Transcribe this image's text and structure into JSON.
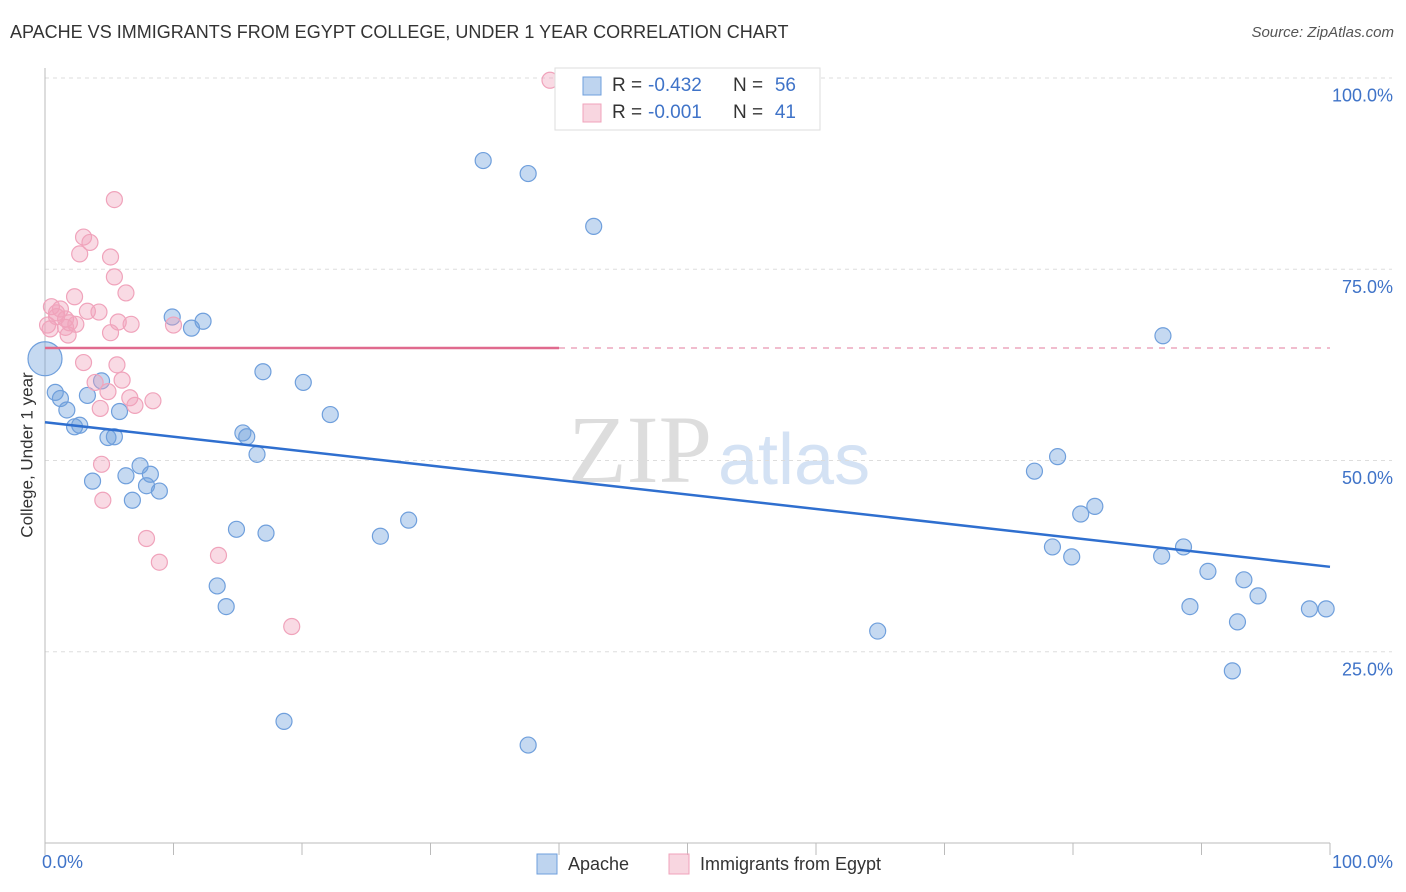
{
  "chart_data": {
    "type": "scatter",
    "title": "APACHE VS IMMIGRANTS FROM EGYPT COLLEGE, UNDER 1 YEAR CORRELATION CHART",
    "source": "Source: ZipAtlas.com",
    "ylabel": "College, Under 1 year",
    "watermark": [
      "ZIP",
      "atlas"
    ],
    "stat_labels": [
      "R =",
      "N ="
    ],
    "xlim": [
      0,
      100
    ],
    "ylim": [
      0,
      101.3
    ],
    "xticks": [
      {
        "value": 0,
        "label": "0.0%"
      },
      {
        "value": 100,
        "label": "100.0%"
      }
    ],
    "xticks_minor": [
      10,
      20,
      30,
      40,
      50,
      60,
      70,
      80,
      90
    ],
    "yticks": [
      {
        "value": 25,
        "label": "25.0%"
      },
      {
        "value": 50,
        "label": "50.0%"
      },
      {
        "value": 75,
        "label": "75.0%"
      },
      {
        "value": 100,
        "label": "100.0%"
      }
    ],
    "grid": true,
    "series": [
      {
        "name": "Apache",
        "color": "#6f9fdc",
        "line_color": "#2f6fcf",
        "r": -0.432,
        "n": 56,
        "trend": [
          55.0,
          36.1
        ],
        "x": [
          34.1,
          37.6,
          42.7,
          9.9,
          11.4,
          12.3,
          16.96,
          20.1,
          22.2,
          0.8,
          1.2,
          1.7,
          2.3,
          2.7,
          3.3,
          4.4,
          5.8,
          4.9,
          5.4,
          7.4,
          6.3,
          8.2,
          7.9,
          8.9,
          3.7,
          6.8,
          15.4,
          15.7,
          16.5,
          14.9,
          17.2,
          26.1,
          28.3,
          13.4,
          14.1,
          18.6,
          37.6,
          64.8,
          87.0,
          77.0,
          78.8,
          80.6,
          81.7,
          78.4,
          79.9,
          86.9,
          88.6,
          90.5,
          93.3,
          94.4,
          89.1,
          92.8,
          98.4,
          99.7,
          92.4,
          0
        ],
        "values": [
          89.2,
          87.5,
          80.6,
          68.75,
          67.3,
          68.2,
          61.6,
          60.2,
          56.0,
          58.9,
          58.1,
          56.6,
          54.4,
          54.6,
          58.5,
          60.4,
          56.4,
          53.0,
          53.1,
          49.3,
          48.0,
          48.2,
          46.7,
          46.0,
          47.3,
          44.8,
          53.6,
          53.1,
          50.8,
          41.0,
          40.5,
          40.1,
          42.2,
          33.6,
          30.9,
          15.9,
          12.8,
          27.7,
          66.3,
          48.6,
          50.5,
          43.0,
          44.0,
          38.7,
          37.4,
          37.5,
          38.7,
          35.5,
          34.4,
          32.3,
          30.9,
          28.9,
          30.6,
          30.6,
          22.5,
          63.3
        ]
      },
      {
        "name": "Immigrants from Egypt",
        "color": "#f0a3bb",
        "line_color": "#e06a8e",
        "r": -0.001,
        "n": 41,
        "trend": [
          64.7,
          64.7
        ],
        "trend_solid_to": 40,
        "x": [
          39.3,
          5.4,
          3.0,
          3.5,
          2.7,
          5.1,
          5.4,
          6.3,
          2.3,
          0.5,
          1.2,
          3.3,
          0.9,
          1.6,
          0.2,
          1.9,
          2.4,
          5.7,
          6.7,
          10.0,
          1.8,
          3.0,
          5.6,
          3.9,
          6.0,
          4.9,
          6.6,
          8.4,
          7.0,
          4.3,
          4.4,
          4.5,
          7.9,
          8.9,
          13.5,
          19.2,
          0.4,
          0.9,
          4.2,
          1.6,
          5.1
        ],
        "values": [
          99.7,
          84.1,
          79.2,
          78.5,
          77.0,
          76.6,
          74.0,
          71.9,
          71.4,
          70.1,
          69.8,
          69.5,
          69.3,
          68.5,
          67.7,
          68.0,
          67.8,
          68.1,
          67.8,
          67.7,
          66.4,
          62.8,
          62.5,
          60.2,
          60.5,
          59.0,
          58.2,
          57.8,
          57.2,
          56.8,
          49.5,
          44.8,
          39.8,
          36.7,
          37.6,
          28.3,
          67.2,
          68.8,
          69.4,
          67.4,
          66.7
        ]
      }
    ]
  }
}
